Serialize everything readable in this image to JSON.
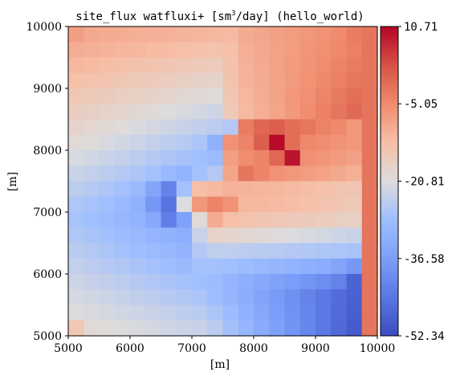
{
  "chart_data": {
    "type": "heatmap",
    "title_prefix": "site_flux watfluxi+ [sm",
    "title_superscript": "3",
    "title_suffix": "/day] (hello_world)",
    "xlabel": "[m]",
    "ylabel": "[m]",
    "xlim": [
      5000,
      10000
    ],
    "ylim": [
      5000,
      10000
    ],
    "x_ticks": [
      5000,
      6000,
      7000,
      8000,
      9000,
      10000
    ],
    "y_ticks": [
      5000,
      6000,
      7000,
      8000,
      9000,
      10000
    ],
    "x_tick_labels": [
      "5000",
      "6000",
      "7000",
      "8000",
      "9000",
      "10000"
    ],
    "y_tick_labels": [
      "5000",
      "6000",
      "7000",
      "8000",
      "9000",
      "10000"
    ],
    "grid": false,
    "colormap": "coolwarm",
    "value_range": [
      -52.34,
      10.71
    ],
    "colorbar_ticks": [
      10.71,
      -5.05,
      -20.81,
      -36.58,
      -52.34
    ],
    "colorbar_tick_labels": [
      "10.71",
      "-5.05",
      "-20.81",
      "-36.58",
      "-52.34"
    ],
    "grid_size": [
      20,
      20
    ],
    "cell_size_m": 250,
    "row_order": "top-to-bottom (first row is y = 9750..10000)",
    "values": [
      [
        -8.0,
        -9.6,
        -9.9,
        -10.2,
        -10.5,
        -10.8,
        -11.0,
        -11.3,
        -11.6,
        -11.9,
        -12.2,
        -10.0,
        -9.2,
        -8.4,
        -7.6,
        -6.8,
        -6.0,
        -5.0,
        -3.0,
        -2.0
      ],
      [
        -10.1,
        -10.7,
        -11.1,
        -11.5,
        -11.9,
        -12.3,
        -12.7,
        -13.1,
        -13.5,
        -13.9,
        -13.2,
        -10.5,
        -9.6,
        -8.6,
        -7.6,
        -6.6,
        -5.6,
        -4.6,
        -3.6,
        -2.0
      ],
      [
        -11.7,
        -12.3,
        -12.8,
        -13.3,
        -13.8,
        -14.2,
        -14.7,
        -15.2,
        -15.7,
        -16.2,
        -13.8,
        -10.9,
        -9.8,
        -8.6,
        -7.5,
        -6.3,
        -5.2,
        -4.0,
        -2.9,
        -2.0
      ],
      [
        -13.4,
        -14.0,
        -14.6,
        -15.1,
        -15.7,
        -16.2,
        -16.8,
        -17.3,
        -17.9,
        -18.4,
        -14.4,
        -11.3,
        -10.0,
        -8.7,
        -7.4,
        -6.1,
        -4.8,
        -3.5,
        -2.2,
        -2.0
      ],
      [
        -15.0,
        -15.7,
        -16.3,
        -16.9,
        -17.5,
        -18.1,
        -18.8,
        -19.4,
        -20.0,
        -20.6,
        -15.0,
        -11.8,
        -10.2,
        -8.7,
        -7.2,
        -5.7,
        -4.2,
        -2.7,
        -1.2,
        -2.0
      ],
      [
        -16.7,
        -17.4,
        -18.0,
        -18.7,
        -19.4,
        -20.1,
        -20.8,
        -21.5,
        -22.2,
        -22.9,
        -15.6,
        -12.2,
        -10.5,
        -8.8,
        -7.1,
        -5.4,
        -3.7,
        -2.0,
        -0.3,
        -2.0
      ],
      [
        -18.3,
        -19.0,
        -19.8,
        -20.5,
        -21.3,
        -22.0,
        -22.8,
        -23.6,
        -24.3,
        -25.1,
        -26.0,
        -3.0,
        0.0,
        1.0,
        -1.0,
        -2.2,
        -3.8,
        -4.6,
        -6.8,
        -2.0
      ],
      [
        -20.0,
        -20.7,
        -21.5,
        -22.3,
        -23.2,
        -24.0,
        -24.8,
        -25.6,
        -27.0,
        -32.0,
        -6.0,
        -4.0,
        1.0,
        10.0,
        -1.0,
        -4.6,
        -5.4,
        -6.2,
        -7.0,
        -2.0
      ],
      [
        -21.7,
        -22.4,
        -23.3,
        -24.1,
        -25.0,
        -25.9,
        -26.8,
        -27.6,
        -28.5,
        -29.4,
        -8.0,
        -5.4,
        -4.1,
        -0.1,
        9.0,
        -5.6,
        -6.6,
        -7.5,
        -8.4,
        -2.0
      ],
      [
        -23.3,
        -24.1,
        -25.0,
        -25.9,
        -26.8,
        -28.0,
        -30.0,
        -31.4,
        -28.0,
        -26.0,
        -9.0,
        -2.0,
        -4.0,
        -6.0,
        -7.0,
        -7.6,
        -8.6,
        -9.6,
        -10.6,
        -2.0
      ],
      [
        -25.0,
        -25.8,
        -26.8,
        -28.0,
        -30.0,
        -35.0,
        -42.0,
        -28.0,
        -13.0,
        -12.0,
        -11.0,
        -11.2,
        -11.5,
        -11.8,
        -12.2,
        -12.8,
        -13.4,
        -14.1,
        -14.8,
        -2.0
      ],
      [
        -26.6,
        -27.5,
        -28.5,
        -30.0,
        -32.0,
        -38.0,
        -45.0,
        -21.0,
        -7.0,
        -4.0,
        -6.0,
        -11.8,
        -12.0,
        -12.4,
        -12.8,
        -13.4,
        -14.1,
        -14.8,
        -15.6,
        -2.0
      ],
      [
        -27.5,
        -28.5,
        -29.5,
        -30.5,
        -31.5,
        -34.0,
        -43.0,
        -36.0,
        -20.0,
        -10.0,
        -13.0,
        -14.0,
        -14.5,
        -15.0,
        -15.5,
        -16.0,
        -16.5,
        -17.0,
        -17.5,
        -2.0
      ],
      [
        -26.4,
        -27.3,
        -28.2,
        -29.1,
        -30.0,
        -30.9,
        -31.8,
        -32.7,
        -23.6,
        -18.0,
        -18.6,
        -19.2,
        -19.8,
        -20.4,
        -21.0,
        -21.6,
        -22.2,
        -22.8,
        -23.4,
        -2.0
      ],
      [
        -25.2,
        -26.1,
        -26.9,
        -27.8,
        -28.6,
        -29.5,
        -30.3,
        -31.2,
        -26.0,
        -24.6,
        -24.6,
        -24.9,
        -25.3,
        -25.6,
        -26.0,
        -26.3,
        -26.7,
        -27.0,
        -27.4,
        -2.0
      ],
      [
        -24.1,
        -24.9,
        -25.7,
        -26.4,
        -27.2,
        -28.0,
        -28.8,
        -29.6,
        -27.8,
        -27.8,
        -28.5,
        -29.2,
        -30.0,
        -30.7,
        -31.5,
        -32.2,
        -33.0,
        -35.0,
        -38.0,
        -2.0
      ],
      [
        -23.0,
        -23.7,
        -24.4,
        -25.1,
        -25.8,
        -26.5,
        -27.2,
        -27.9,
        -28.5,
        -29.3,
        -31.0,
        -32.5,
        -34.0,
        -35.5,
        -37.0,
        -38.5,
        -40.0,
        -42.0,
        -48.0,
        -2.0
      ],
      [
        -21.8,
        -22.5,
        -23.1,
        -23.8,
        -24.4,
        -25.0,
        -25.7,
        -26.3,
        -27.0,
        -28.6,
        -30.8,
        -33.0,
        -35.2,
        -37.4,
        -39.6,
        -41.8,
        -44.0,
        -46.2,
        -48.4,
        -2.0
      ],
      [
        -20.7,
        -21.3,
        -21.9,
        -22.4,
        -23.0,
        -23.6,
        -24.1,
        -24.7,
        -25.3,
        -26.9,
        -29.3,
        -31.8,
        -34.2,
        -36.7,
        -39.1,
        -41.6,
        -44.0,
        -46.5,
        -48.9,
        -2.0
      ],
      [
        -15.0,
        -20.0,
        -20.6,
        -21.1,
        -21.6,
        -22.1,
        -22.6,
        -23.1,
        -23.6,
        -25.1,
        -27.8,
        -30.5,
        -33.3,
        -36.0,
        -38.7,
        -41.4,
        -44.1,
        -46.9,
        -49.6,
        -2.0
      ]
    ]
  }
}
